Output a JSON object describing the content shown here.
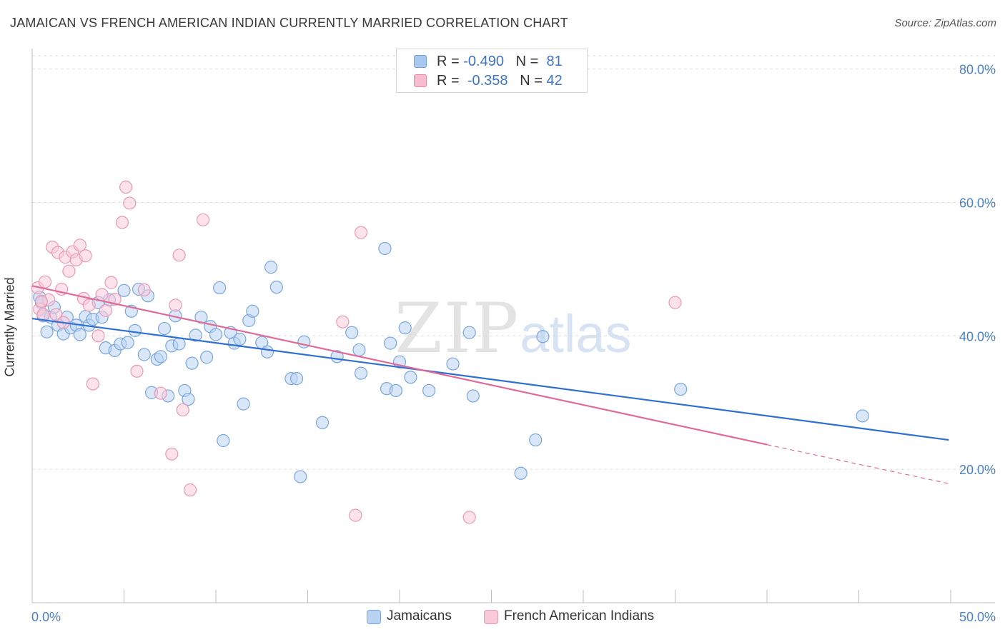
{
  "title": "JAMAICAN VS FRENCH AMERICAN INDIAN CURRENTLY MARRIED CORRELATION CHART",
  "source": "Source: ZipAtlas.com",
  "watermark": {
    "zip": "ZIP",
    "atlas": "atlas"
  },
  "stats": [
    {
      "r_label": "R = ",
      "r_value": "-0.490",
      "n_label": "N = ",
      "n_value": "81",
      "color": "#a8c8f0",
      "border": "#6f9fdc"
    },
    {
      "r_label": "R = ",
      "r_value": "-0.358",
      "n_label": "N = ",
      "n_value": "42",
      "color": "#f7bcd0",
      "border": "#e58aa8"
    }
  ],
  "legend": [
    {
      "label": "Jamaicans",
      "color": "#b9d3f3",
      "border": "#7aa6de"
    },
    {
      "label": "French American Indians",
      "color": "#f9cbd9",
      "border": "#e99ab5"
    }
  ],
  "chart_data": {
    "type": "scatter",
    "title": "JAMAICAN VS FRENCH AMERICAN INDIAN CURRENTLY MARRIED CORRELATION CHART",
    "xlabel": "",
    "ylabel": "Currently Married",
    "xlim": [
      0,
      50
    ],
    "ylim": [
      0,
      82
    ],
    "x_tick_labels": [
      {
        "value": 0,
        "label": "0.0%"
      },
      {
        "value": 50,
        "label": "50.0%"
      }
    ],
    "y_tick_labels": [
      {
        "value": 20,
        "label": "20.0%"
      },
      {
        "value": 40,
        "label": "40.0%"
      },
      {
        "value": 60,
        "label": "60.0%"
      },
      {
        "value": 80,
        "label": "80.0%"
      }
    ],
    "x_minor_ticks": [
      0,
      5,
      10,
      15,
      20,
      25,
      30,
      35,
      40,
      45,
      50
    ],
    "grid": "horizontal dashed",
    "legend_position": "bottom-center",
    "series": [
      {
        "name": "Jamaicans",
        "color": "#7aa6de",
        "fill": "#b9d3f3",
        "trend": {
          "x": [
            0,
            49.9
          ],
          "y": [
            42.6,
            24.4
          ],
          "color": "#2f6fd0"
        },
        "points": [
          [
            0.4,
            45.8
          ],
          [
            0.5,
            45.0
          ],
          [
            0.6,
            43.0
          ],
          [
            0.8,
            40.6
          ],
          [
            1.0,
            42.8
          ],
          [
            1.2,
            44.3
          ],
          [
            1.4,
            41.6
          ],
          [
            1.7,
            40.3
          ],
          [
            1.9,
            42.8
          ],
          [
            2.1,
            41.2
          ],
          [
            2.4,
            41.6
          ],
          [
            2.6,
            40.2
          ],
          [
            2.9,
            42.9
          ],
          [
            3.1,
            41.6
          ],
          [
            3.3,
            42.5
          ],
          [
            3.6,
            45.0
          ],
          [
            3.8,
            42.8
          ],
          [
            4.0,
            38.2
          ],
          [
            4.2,
            45.4
          ],
          [
            4.5,
            37.8
          ],
          [
            4.8,
            38.8
          ],
          [
            5.0,
            46.8
          ],
          [
            5.2,
            39.0
          ],
          [
            5.4,
            43.7
          ],
          [
            5.6,
            40.8
          ],
          [
            5.8,
            47.0
          ],
          [
            6.1,
            37.2
          ],
          [
            6.3,
            46.0
          ],
          [
            6.5,
            31.5
          ],
          [
            6.8,
            36.5
          ],
          [
            7.0,
            36.9
          ],
          [
            7.2,
            41.1
          ],
          [
            7.4,
            31.0
          ],
          [
            7.6,
            38.5
          ],
          [
            7.8,
            43.0
          ],
          [
            8.0,
            38.8
          ],
          [
            8.3,
            31.8
          ],
          [
            8.5,
            30.5
          ],
          [
            8.7,
            35.9
          ],
          [
            8.9,
            40.1
          ],
          [
            9.2,
            42.8
          ],
          [
            9.5,
            36.8
          ],
          [
            9.7,
            41.4
          ],
          [
            10.0,
            40.2
          ],
          [
            10.2,
            47.2
          ],
          [
            10.4,
            24.3
          ],
          [
            10.8,
            40.5
          ],
          [
            11.0,
            38.9
          ],
          [
            11.3,
            39.5
          ],
          [
            11.5,
            29.8
          ],
          [
            11.8,
            42.3
          ],
          [
            12.0,
            43.7
          ],
          [
            12.5,
            39.0
          ],
          [
            12.8,
            37.6
          ],
          [
            13.0,
            50.3
          ],
          [
            13.3,
            47.3
          ],
          [
            14.1,
            33.6
          ],
          [
            14.4,
            33.6
          ],
          [
            14.6,
            18.9
          ],
          [
            14.8,
            39.1
          ],
          [
            15.8,
            27.0
          ],
          [
            16.6,
            36.9
          ],
          [
            17.4,
            40.5
          ],
          [
            17.8,
            37.9
          ],
          [
            17.9,
            34.4
          ],
          [
            19.2,
            53.1
          ],
          [
            19.3,
            32.1
          ],
          [
            19.5,
            38.9
          ],
          [
            19.8,
            31.8
          ],
          [
            20.0,
            36.1
          ],
          [
            20.3,
            41.2
          ],
          [
            20.6,
            33.8
          ],
          [
            21.6,
            31.8
          ],
          [
            22.9,
            35.8
          ],
          [
            23.8,
            40.5
          ],
          [
            24.0,
            31.0
          ],
          [
            26.6,
            19.4
          ],
          [
            27.4,
            24.4
          ],
          [
            27.8,
            39.9
          ],
          [
            35.3,
            32.0
          ],
          [
            45.2,
            28.0
          ]
        ]
      },
      {
        "name": "French American Indians",
        "color": "#e99ab5",
        "fill": "#f9cbd9",
        "trend": {
          "x": [
            0,
            40.0
          ],
          "y": [
            47.5,
            23.7
          ],
          "color": "#e06a98"
        },
        "trend_extension": {
          "x": [
            40.0,
            50.0
          ],
          "y": [
            23.7,
            17.8
          ]
        },
        "points": [
          [
            0.3,
            47.2
          ],
          [
            0.4,
            44.0
          ],
          [
            0.6,
            43.2
          ],
          [
            0.7,
            48.1
          ],
          [
            0.9,
            45.4
          ],
          [
            1.1,
            53.3
          ],
          [
            1.3,
            43.2
          ],
          [
            1.4,
            52.5
          ],
          [
            1.6,
            47.0
          ],
          [
            1.7,
            42.0
          ],
          [
            1.8,
            51.8
          ],
          [
            2.0,
            49.7
          ],
          [
            2.2,
            52.6
          ],
          [
            2.4,
            51.4
          ],
          [
            2.6,
            53.6
          ],
          [
            2.8,
            45.6
          ],
          [
            2.9,
            52.0
          ],
          [
            3.1,
            44.6
          ],
          [
            3.3,
            32.8
          ],
          [
            3.6,
            40.0
          ],
          [
            3.8,
            46.2
          ],
          [
            4.0,
            43.8
          ],
          [
            4.3,
            48.0
          ],
          [
            4.5,
            45.5
          ],
          [
            4.9,
            57.0
          ],
          [
            5.1,
            62.3
          ],
          [
            5.3,
            59.9
          ],
          [
            5.7,
            34.7
          ],
          [
            6.1,
            46.9
          ],
          [
            7.0,
            31.4
          ],
          [
            7.6,
            22.3
          ],
          [
            7.8,
            44.6
          ],
          [
            8.0,
            52.1
          ],
          [
            8.2,
            28.9
          ],
          [
            8.6,
            16.9
          ],
          [
            9.3,
            57.4
          ],
          [
            16.9,
            42.1
          ],
          [
            17.6,
            13.1
          ],
          [
            17.9,
            55.5
          ],
          [
            23.8,
            12.8
          ],
          [
            35.0,
            45.0
          ],
          [
            0.5,
            45.2
          ]
        ]
      }
    ]
  }
}
